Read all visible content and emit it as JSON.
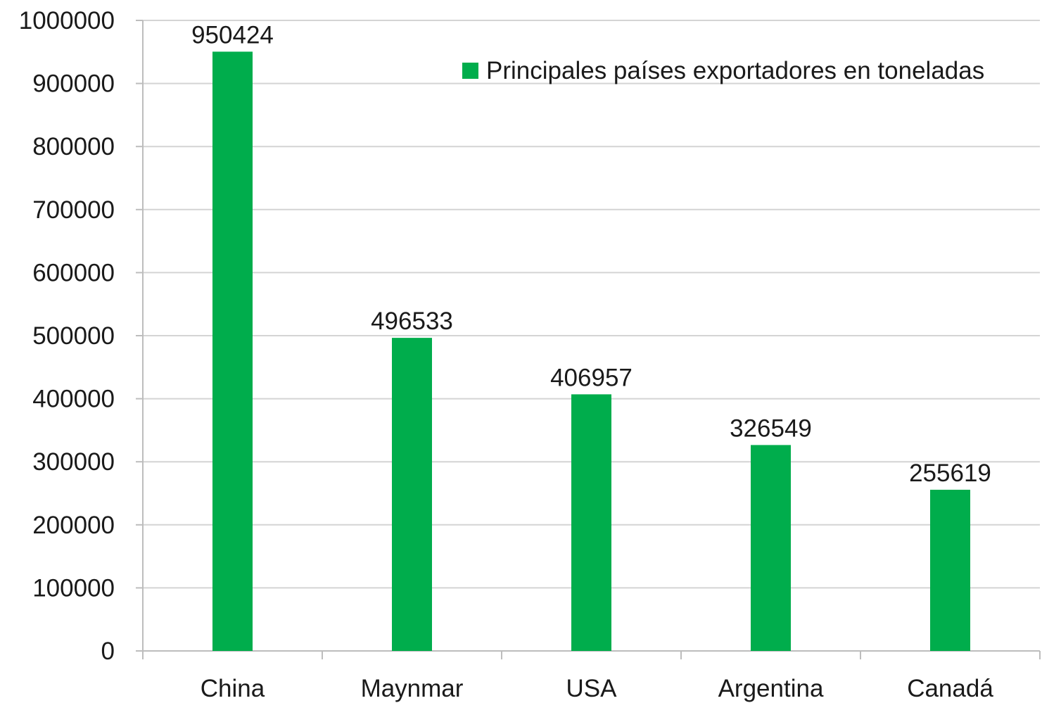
{
  "chart_data": {
    "type": "bar",
    "categories": [
      "China",
      "Maynmar",
      "USA",
      "Argentina",
      "Canadá"
    ],
    "series": [
      {
        "name": "Principales países exportadores en toneladas",
        "values": [
          950424,
          496533,
          406957,
          326549,
          255619
        ],
        "color": "#00ad4c"
      }
    ],
    "data_labels": [
      "950424",
      "496533",
      "406957",
      "326549",
      "255619"
    ],
    "y_ticks": [
      "0",
      "100000",
      "200000",
      "300000",
      "400000",
      "500000",
      "600000",
      "700000",
      "800000",
      "900000",
      "1000000"
    ],
    "ylim": [
      0,
      1000000
    ],
    "title": "",
    "xlabel": "",
    "ylabel": "",
    "grid": true,
    "legend_position": "top-right"
  }
}
